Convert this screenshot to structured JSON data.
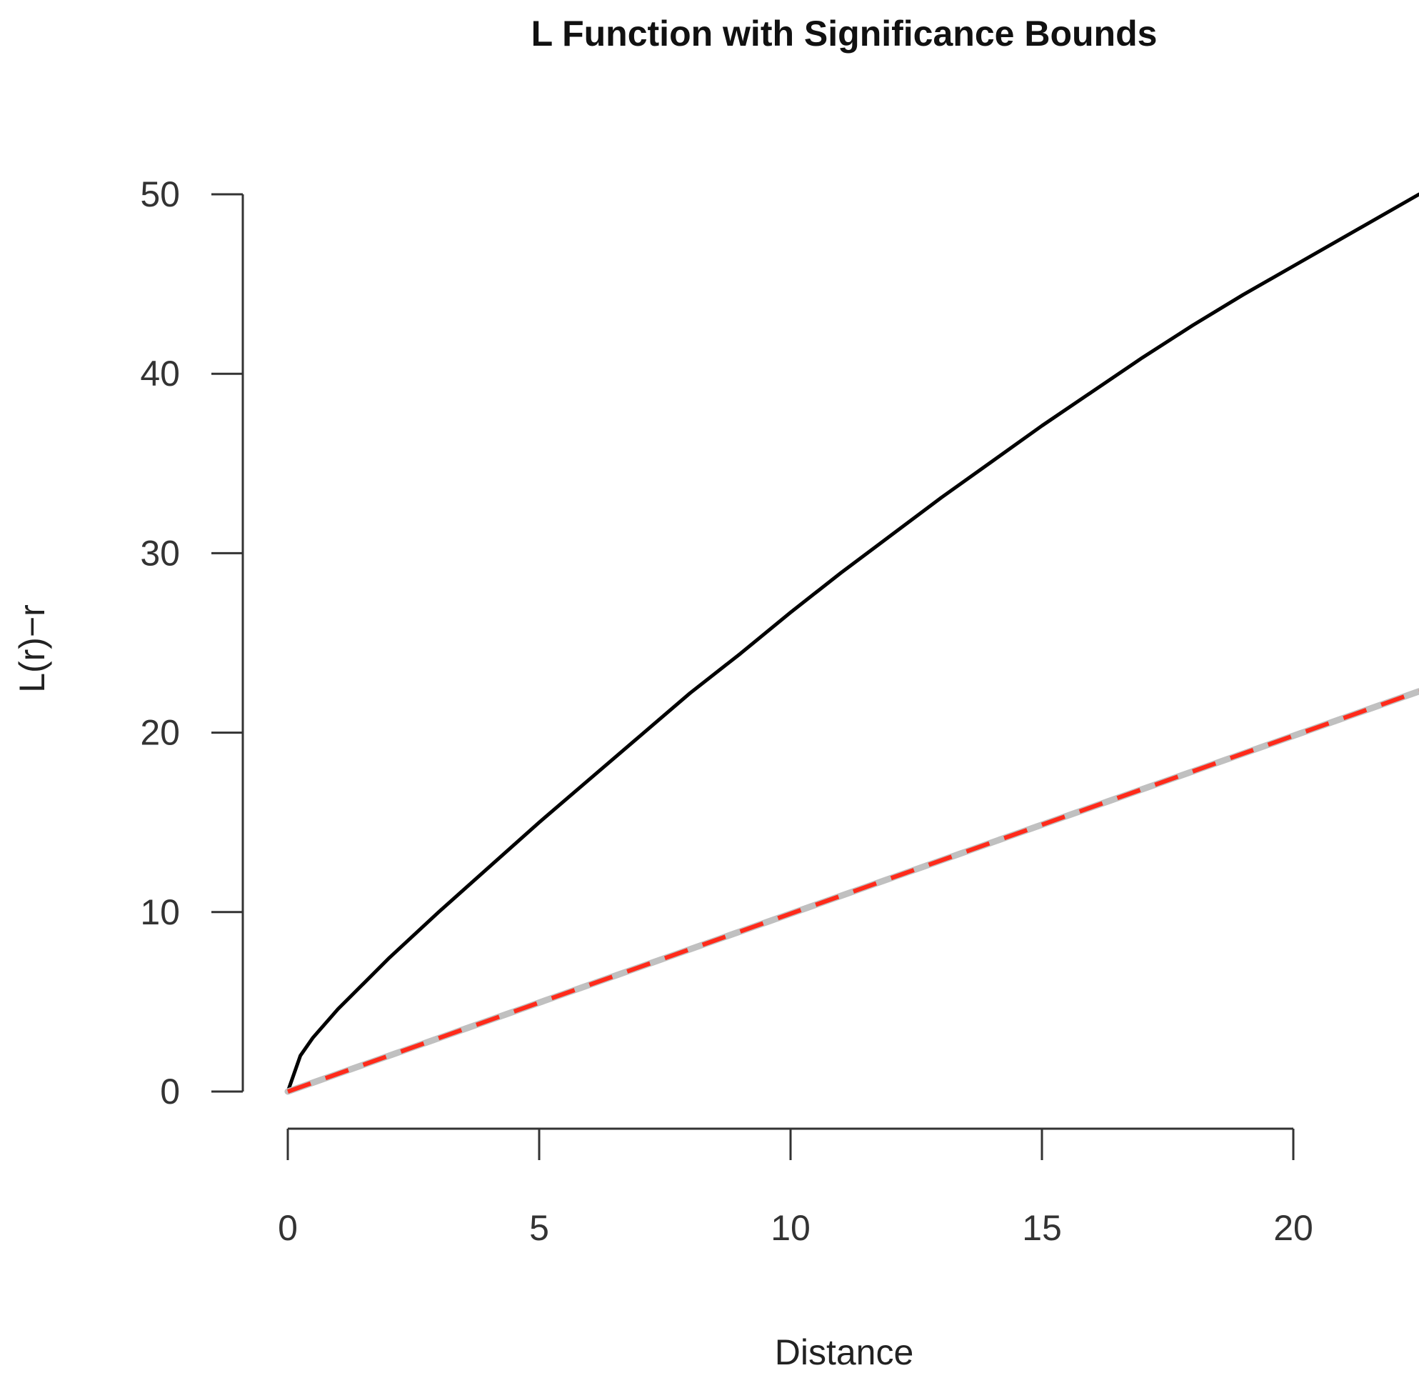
{
  "chart_data": {
    "type": "line",
    "title": "L Function with Significance Bounds",
    "xlabel": "Distance",
    "ylabel": "L(r)−r",
    "xlim": [
      0,
      22.5
    ],
    "ylim": [
      0,
      50
    ],
    "x_ticks": [
      0,
      5,
      10,
      15,
      20
    ],
    "y_ticks": [
      0,
      10,
      20,
      30,
      40,
      50
    ],
    "grid": false,
    "legend": "none",
    "series": [
      {
        "style": "solid",
        "color": "#000000",
        "x": [
          0,
          0.25,
          0.5,
          1,
          1.5,
          2,
          3,
          4,
          5,
          6,
          7,
          8,
          9,
          10,
          11,
          12,
          13,
          14,
          15,
          16,
          17,
          18,
          19,
          20,
          21,
          22.5
        ],
        "y": [
          0,
          2.0,
          3.0,
          4.6,
          6.0,
          7.4,
          10.0,
          12.5,
          15.0,
          17.4,
          19.8,
          22.2,
          24.4,
          26.7,
          28.9,
          31.0,
          33.1,
          35.1,
          37.1,
          39.0,
          40.9,
          42.7,
          44.4,
          46.0,
          47.6,
          50.0
        ]
      },
      {
        "style": "solid",
        "color": "#c0c0c0",
        "x": [
          0,
          22.5
        ],
        "y": [
          0,
          22.3
        ]
      },
      {
        "style": "dashed",
        "color": "#ff2a1a",
        "x": [
          0,
          22.5
        ],
        "y": [
          0,
          22.3
        ]
      }
    ]
  }
}
